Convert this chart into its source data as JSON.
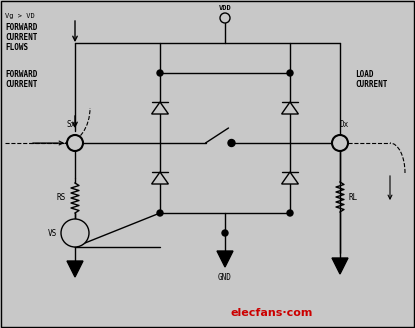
{
  "bg_color": "#c8c8c8",
  "fg_color": "#000000",
  "border_color": "#000000",
  "watermark_color": "#cc0000",
  "watermark_gray": "#888888",
  "annotations": {
    "vg_vd": "Vg > VD",
    "forward1": "FORWARD",
    "current1": "CURRENT",
    "flows": "FLOWS",
    "forward2": "FORWARD",
    "current2": "CURRENT",
    "load1": "LOAD",
    "load2": "CURRENT",
    "vdd": "VDD",
    "gnd": "GND",
    "sx": "Sx",
    "dx": "Dx",
    "rs": "RS",
    "vs": "VS",
    "rl": "RL"
  }
}
